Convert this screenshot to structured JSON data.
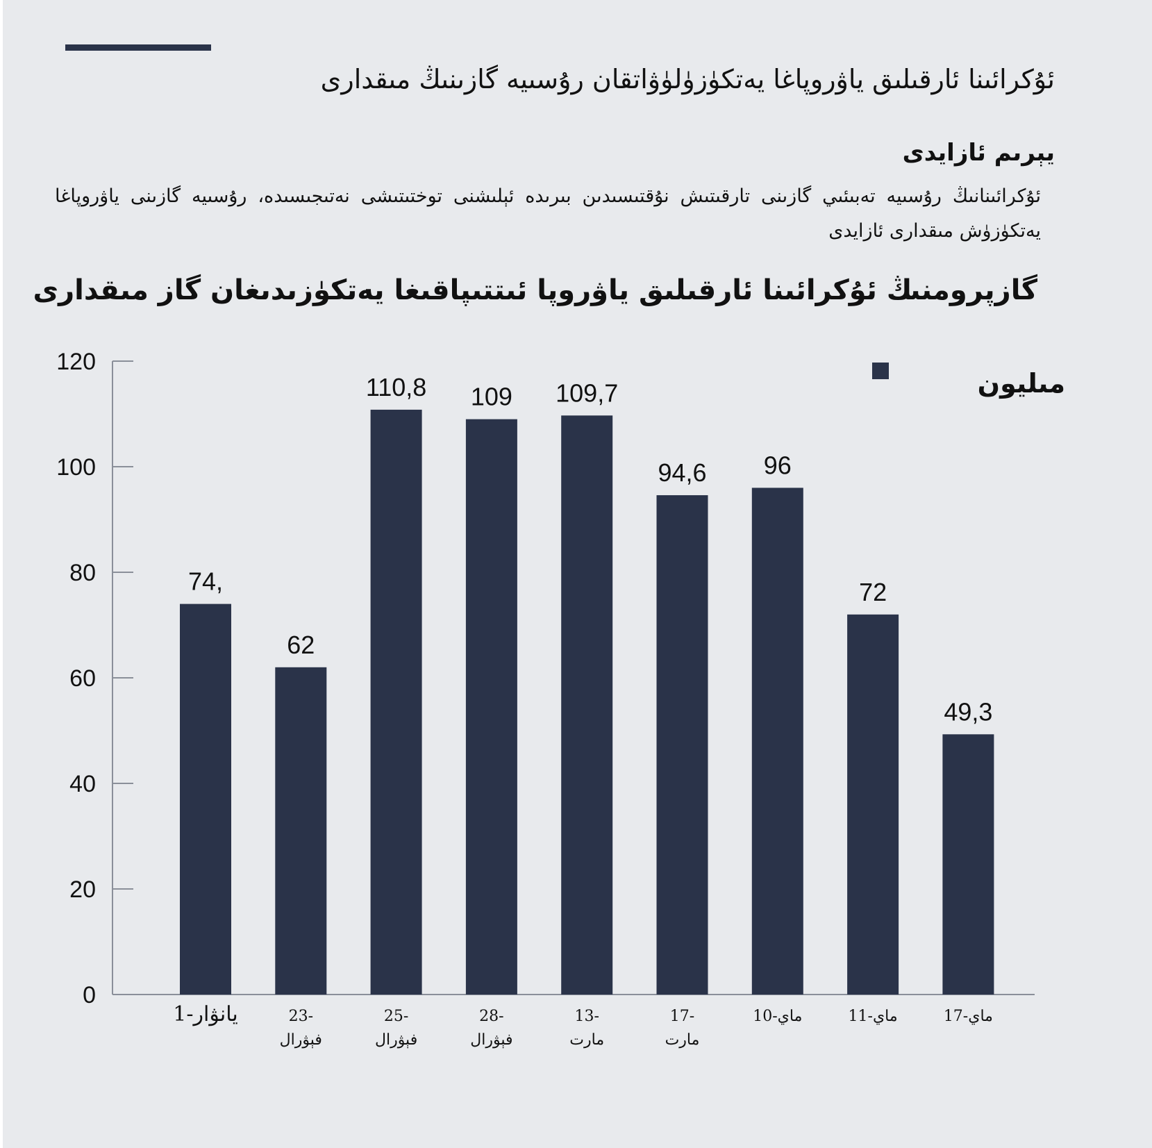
{
  "colors": {
    "background": "#e8eaed",
    "bar": "#2a3349",
    "accent_line": "#2a3349"
  },
  "header": {
    "headline": "ئۇكرائىنا ئارقىلىق ياۋروپاغا يەتكۈزۈلۈۋاتقان رۇسىيە گازىنىڭ مىقدارى",
    "source": "يېرىم ئازايدى",
    "description": "ئۇكرائىنانىڭ رۇسىيە تەبىئىي گازىنى تارقىتىش نۇقتىسىدىن بىرىدە ئېلىشنى توختىتىشى نەتىجىسىدە، رۇسىيە گازىنى ياۋروپاغا يەتكۈزۈش مىقدارى ئازايدى"
  },
  "chart_data": {
    "type": "bar",
    "title": "گازپرومنىڭ ئۇكرائىنا ئارقىلىق ياۋروپا ئىتتىپاقىغا يەتكۈزىدىغان گاز مىقدارى",
    "legend": {
      "label": "مىليون",
      "position": "top-right"
    },
    "ylim": [
      0,
      120
    ],
    "yticks": [
      0,
      20,
      40,
      60,
      80,
      100,
      120
    ],
    "xlabel": "",
    "ylabel": "",
    "categories": [
      {
        "line1": "1-يانۋار",
        "line2": ""
      },
      {
        "line1": "23-",
        "line2": "فېۋرال"
      },
      {
        "line1": "25-",
        "line2": "فېۋرال"
      },
      {
        "line1": "28-",
        "line2": "فېۋرال"
      },
      {
        "line1": "13-",
        "line2": "مارت"
      },
      {
        "line1": "17-",
        "line2": "مارت"
      },
      {
        "line1": "10-ماي",
        "line2": ""
      },
      {
        "line1": "11-ماي",
        "line2": ""
      },
      {
        "line1": "17-ماي",
        "line2": ""
      }
    ],
    "values": [
      74,
      62,
      110.8,
      109,
      109.7,
      94.6,
      96,
      72,
      49.3
    ],
    "value_labels": [
      "74,",
      "62",
      "110,8",
      "109",
      "109,7",
      "94,6",
      "96",
      "72",
      "49,3"
    ]
  }
}
